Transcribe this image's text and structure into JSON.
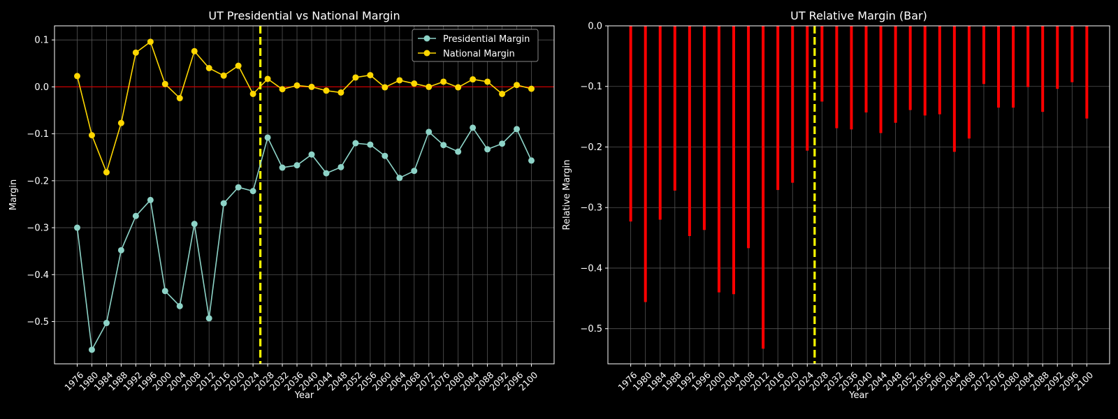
{
  "colors": {
    "background": "#000000",
    "presidential": "#8dd3c7",
    "national": "#ffd700",
    "bar": "#ff0000",
    "vline": "#ffff00",
    "zeroline": "#cc0000",
    "grid": "#555555",
    "text": "#ffffff"
  },
  "chart_data": [
    {
      "type": "line",
      "title": "UT Presidential vs National Margin",
      "xlabel": "Year",
      "ylabel": "Margin",
      "x": [
        1976,
        1980,
        1984,
        1988,
        1992,
        1996,
        2000,
        2004,
        2008,
        2012,
        2016,
        2020,
        2024,
        2028,
        2032,
        2036,
        2040,
        2044,
        2048,
        2052,
        2056,
        2060,
        2064,
        2068,
        2072,
        2076,
        2080,
        2084,
        2088,
        2092,
        2096,
        2100
      ],
      "xlim": [
        1969.8,
        2106.2
      ],
      "ylim": [
        -0.59,
        0.13
      ],
      "yticks": [
        0.1,
        0.0,
        -0.1,
        -0.2,
        -0.3,
        -0.4,
        -0.5
      ],
      "ytick_labels": [
        "0.1",
        "0.0",
        "−0.1",
        "−0.2",
        "−0.3",
        "−0.4",
        "−0.5"
      ],
      "grid": true,
      "legend": "top-right",
      "vline_x": 2026,
      "hline_y": 0,
      "series": [
        {
          "name": "Presidential Margin",
          "values": [
            -0.3,
            -0.56,
            -0.503,
            -0.348,
            -0.275,
            -0.241,
            -0.435,
            -0.467,
            -0.292,
            -0.493,
            -0.248,
            -0.214,
            -0.222,
            -0.108,
            -0.172,
            -0.167,
            -0.144,
            -0.184,
            -0.171,
            -0.12,
            -0.123,
            -0.147,
            -0.194,
            -0.179,
            -0.096,
            -0.124,
            -0.138,
            -0.087,
            -0.133,
            -0.121,
            -0.09,
            -0.157
          ]
        },
        {
          "name": "National Margin",
          "values": [
            0.023,
            -0.103,
            -0.182,
            -0.077,
            0.073,
            0.096,
            0.006,
            -0.024,
            0.076,
            0.04,
            0.024,
            0.045,
            -0.015,
            0.017,
            -0.005,
            0.003,
            0.0,
            -0.008,
            -0.012,
            0.02,
            0.025,
            -0.001,
            0.014,
            0.007,
            0.0,
            0.011,
            -0.001,
            0.016,
            0.011,
            -0.015,
            0.004,
            -0.004
          ]
        }
      ]
    },
    {
      "type": "bar",
      "title": "UT Relative Margin (Bar)",
      "xlabel": "Year",
      "ylabel": "Relative Margin",
      "x": [
        1976,
        1980,
        1984,
        1988,
        1992,
        1996,
        2000,
        2004,
        2008,
        2012,
        2016,
        2020,
        2024,
        2028,
        2032,
        2036,
        2040,
        2044,
        2048,
        2052,
        2056,
        2060,
        2064,
        2068,
        2072,
        2076,
        2080,
        2084,
        2088,
        2092,
        2096,
        2100
      ],
      "xlim": [
        1969.8,
        2106.2
      ],
      "ylim": [
        -0.558,
        0.0
      ],
      "yticks": [
        0.0,
        -0.1,
        -0.2,
        -0.3,
        -0.4,
        -0.5
      ],
      "ytick_labels": [
        "0.0",
        "−0.1",
        "−0.2",
        "−0.3",
        "−0.4",
        "−0.5"
      ],
      "grid": true,
      "vline_x": 2026,
      "values": [
        -0.323,
        -0.456,
        -0.32,
        -0.272,
        -0.347,
        -0.337,
        -0.44,
        -0.443,
        -0.367,
        -0.533,
        -0.271,
        -0.259,
        -0.206,
        -0.125,
        -0.169,
        -0.171,
        -0.143,
        -0.177,
        -0.16,
        -0.139,
        -0.148,
        -0.146,
        -0.208,
        -0.186,
        -0.096,
        -0.135,
        -0.135,
        -0.101,
        -0.142,
        -0.104,
        -0.093,
        -0.153
      ]
    }
  ]
}
